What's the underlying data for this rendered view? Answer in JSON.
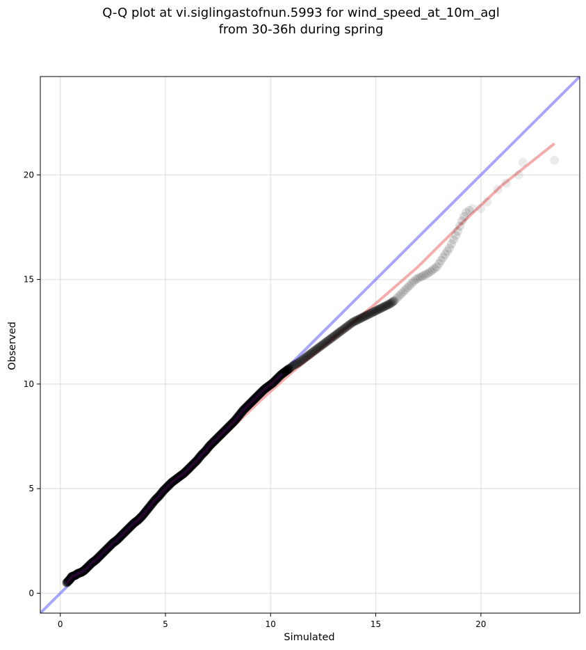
{
  "chart_data": {
    "type": "scatter",
    "title_line1": "Q-Q plot at vi.siglingastofnun.5993 for wind_speed_at_10m_agl",
    "title_line2": "from 30-36h during spring",
    "xlabel": "Simulated",
    "ylabel": "Observed",
    "xlim": [
      -0.95,
      24.7
    ],
    "ylim": [
      -0.95,
      24.7
    ],
    "xticks": [
      0,
      5,
      10,
      15,
      20
    ],
    "yticks": [
      0,
      5,
      10,
      15,
      20
    ],
    "grid": true,
    "identity_line": {
      "color": "#6b6bff",
      "from": [
        -0.95,
        -0.95
      ],
      "to": [
        24.7,
        24.7
      ]
    },
    "fit_line": {
      "color": "#f08080",
      "points": [
        [
          0.3,
          0.5
        ],
        [
          2.0,
          1.95
        ],
        [
          4.0,
          3.85
        ],
        [
          6.0,
          5.8
        ],
        [
          8.0,
          7.75
        ],
        [
          9.5,
          9.2
        ],
        [
          11.0,
          10.55
        ],
        [
          13.0,
          12.2
        ],
        [
          15.0,
          13.85
        ],
        [
          17.0,
          15.6
        ],
        [
          19.0,
          17.6
        ],
        [
          21.0,
          19.5
        ],
        [
          23.5,
          21.5
        ]
      ]
    },
    "colors": {
      "points": "#000000",
      "dense_overlay": "#1a1a8c",
      "dense_overlay_red": "#8b0000"
    },
    "quantiles": {
      "simulated": [
        0.3,
        0.45,
        0.55,
        0.7,
        0.85,
        1.0,
        1.15,
        1.3,
        1.5,
        1.7,
        1.9,
        2.1,
        2.3,
        2.5,
        2.7,
        2.9,
        3.1,
        3.3,
        3.5,
        3.7,
        3.9,
        4.1,
        4.3,
        4.5,
        4.7,
        4.9,
        5.1,
        5.3,
        5.5,
        5.7,
        5.9,
        6.1,
        6.3,
        6.5,
        6.7,
        6.9,
        7.1,
        7.3,
        7.5,
        7.7,
        7.9,
        8.1,
        8.3,
        8.5,
        8.7,
        8.9,
        9.1,
        9.3,
        9.5,
        9.7,
        9.9,
        10.1,
        10.3,
        10.5,
        10.7,
        10.9,
        11.1,
        11.3,
        11.5,
        11.7,
        11.9,
        12.1,
        12.3,
        12.5,
        12.7,
        12.9,
        13.1,
        13.3,
        13.5,
        13.7,
        13.9,
        14.1,
        14.3,
        14.5,
        14.7,
        14.9,
        15.1,
        15.3,
        15.5,
        15.7,
        15.9,
        16.1,
        16.3,
        16.5,
        16.7,
        16.9,
        17.1,
        17.3,
        17.5,
        17.7,
        17.9,
        18.1,
        18.3,
        18.5,
        18.7,
        18.9,
        19.1,
        19.3,
        19.6,
        20.0,
        20.3,
        20.8,
        21.2,
        21.8,
        22.0,
        23.5
      ],
      "observed": [
        0.5,
        0.65,
        0.8,
        0.85,
        0.95,
        1.0,
        1.1,
        1.25,
        1.45,
        1.6,
        1.8,
        2.0,
        2.2,
        2.4,
        2.55,
        2.75,
        2.95,
        3.15,
        3.35,
        3.5,
        3.7,
        3.95,
        4.2,
        4.45,
        4.65,
        4.9,
        5.1,
        5.3,
        5.45,
        5.6,
        5.75,
        5.95,
        6.15,
        6.35,
        6.6,
        6.8,
        7.05,
        7.25,
        7.45,
        7.65,
        7.85,
        8.05,
        8.25,
        8.5,
        8.75,
        8.95,
        9.15,
        9.35,
        9.55,
        9.75,
        9.9,
        10.05,
        10.25,
        10.45,
        10.6,
        10.75,
        10.9,
        11.0,
        11.15,
        11.3,
        11.45,
        11.6,
        11.75,
        11.9,
        12.05,
        12.2,
        12.35,
        12.5,
        12.65,
        12.8,
        12.95,
        13.05,
        13.15,
        13.25,
        13.35,
        13.45,
        13.55,
        13.65,
        13.75,
        13.85,
        14.0,
        14.2,
        14.4,
        14.6,
        14.8,
        15.0,
        15.1,
        15.2,
        15.3,
        15.45,
        15.6,
        15.9,
        16.2,
        16.5,
        16.9,
        17.3,
        17.8,
        18.2,
        18.4,
        18.4,
        18.7,
        19.3,
        19.6,
        20.0,
        20.6,
        20.7
      ]
    }
  }
}
